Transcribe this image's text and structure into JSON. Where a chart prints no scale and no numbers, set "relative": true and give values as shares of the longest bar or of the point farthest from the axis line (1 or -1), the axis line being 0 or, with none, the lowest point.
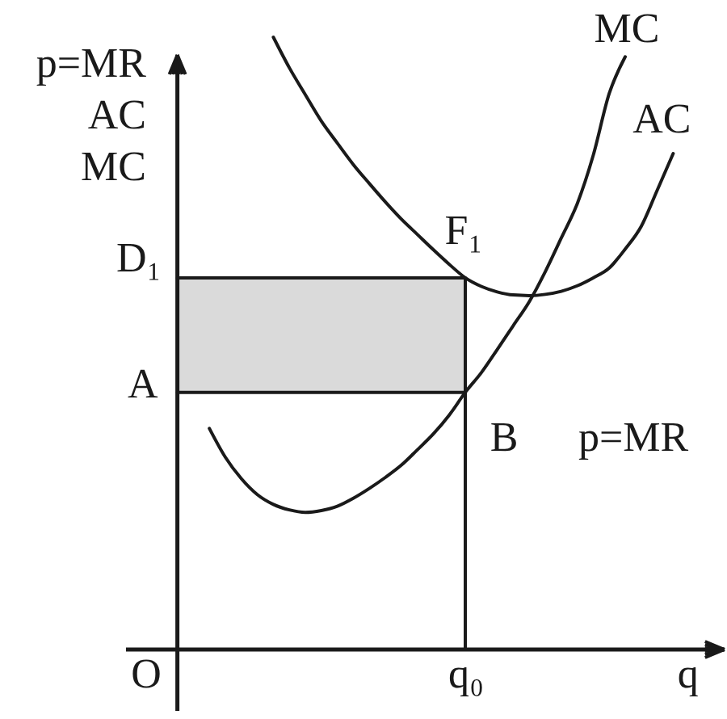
{
  "chart_data": {
    "type": "line",
    "relative": true,
    "xlabel": "q",
    "ylabel": "p=MR\nAC\nMC",
    "categories": [
      "O",
      null,
      null,
      null,
      null,
      null,
      null,
      null,
      null,
      null,
      null,
      null,
      null,
      null,
      null,
      null,
      null,
      null,
      null,
      null,
      "q₀",
      null,
      null,
      null,
      null,
      null,
      null,
      null,
      null,
      null,
      null,
      null,
      null,
      null,
      null,
      null,
      null
    ],
    "grid": false,
    "legend": false,
    "marker": "none",
    "line_style": "solid",
    "series": [
      {
        "name": "MC",
        "color": "#1a1a1a",
        "values": [
          null,
          null,
          null,
          null,
          0.361,
          0.314,
          0.279,
          0.253,
          0.237,
          0.228,
          0.224,
          0.227,
          0.234,
          0.247,
          0.263,
          0.281,
          0.301,
          0.326,
          0.352,
          0.383,
          0.42,
          0.452,
          0.49,
          0.529,
          0.568,
          0.617,
          0.672,
          0.728,
          0.807,
          0.908,
          0.968,
          null,
          null,
          null,
          null,
          null,
          null
        ]
      },
      {
        "name": "AC",
        "color": "#1a1a1a",
        "values": [
          null,
          null,
          null,
          null,
          null,
          null,
          null,
          null,
          1.0,
          0.95,
          0.906,
          0.863,
          0.827,
          0.792,
          0.761,
          0.731,
          0.703,
          0.678,
          0.653,
          0.629,
          0.607,
          0.593,
          0.584,
          0.579,
          0.578,
          0.58,
          0.585,
          0.594,
          0.607,
          0.623,
          0.654,
          0.691,
          0.75,
          0.81,
          null,
          null,
          null
        ]
      },
      {
        "name": "p=MR",
        "color": "#1a1a1a",
        "values": [
          null,
          null,
          0.42,
          0.42,
          0.42,
          0.42,
          0.42,
          0.42,
          0.42,
          0.42,
          0.42,
          0.42,
          0.42,
          0.42,
          0.42,
          0.42,
          0.42,
          0.42,
          0.42,
          0.42,
          0.42,
          null,
          null,
          null,
          null,
          null,
          null,
          null,
          null,
          null,
          null,
          null,
          null,
          null,
          null,
          null,
          null
        ]
      },
      {
        "color": "#1a1a1a",
        "values": [
          null,
          null,
          0.607,
          0.607,
          0.607,
          0.607,
          0.607,
          0.607,
          0.607,
          0.607,
          0.607,
          0.607,
          0.607,
          0.607,
          0.607,
          0.607,
          0.607,
          0.607,
          0.607,
          0.607,
          0.607,
          null,
          null,
          null,
          null,
          null,
          null,
          null,
          null,
          null,
          null,
          null,
          null,
          null,
          null,
          null,
          null
        ],
        "lower": [
          null,
          null,
          0.42,
          0.42,
          0.42,
          0.42,
          0.42,
          0.42,
          0.42,
          0.42,
          0.42,
          0.42,
          0.42,
          0.42,
          0.42,
          0.42,
          0.42,
          0.42,
          0.42,
          0.42,
          0.42,
          null,
          null,
          null,
          null,
          null,
          null,
          null,
          null,
          null,
          null,
          null,
          null,
          null,
          null,
          null,
          null
        ],
        "upper": [
          null,
          null,
          0.607,
          0.607,
          0.607,
          0.607,
          0.607,
          0.607,
          0.607,
          0.607,
          0.607,
          0.607,
          0.607,
          0.607,
          0.607,
          0.607,
          0.607,
          0.607,
          0.607,
          0.607,
          0.607,
          null,
          null,
          null,
          null,
          null,
          null,
          null,
          null,
          null,
          null,
          null,
          null,
          null,
          null,
          null,
          null
        ]
      }
    ],
    "ref_lines": [
      {
        "axis": "x",
        "value": "q₀"
      }
    ],
    "annotations": [
      "D₁",
      "A",
      {
        "text": "F₁",
        "x": "q₀",
        "y": 0.607
      },
      "B"
    ]
  }
}
